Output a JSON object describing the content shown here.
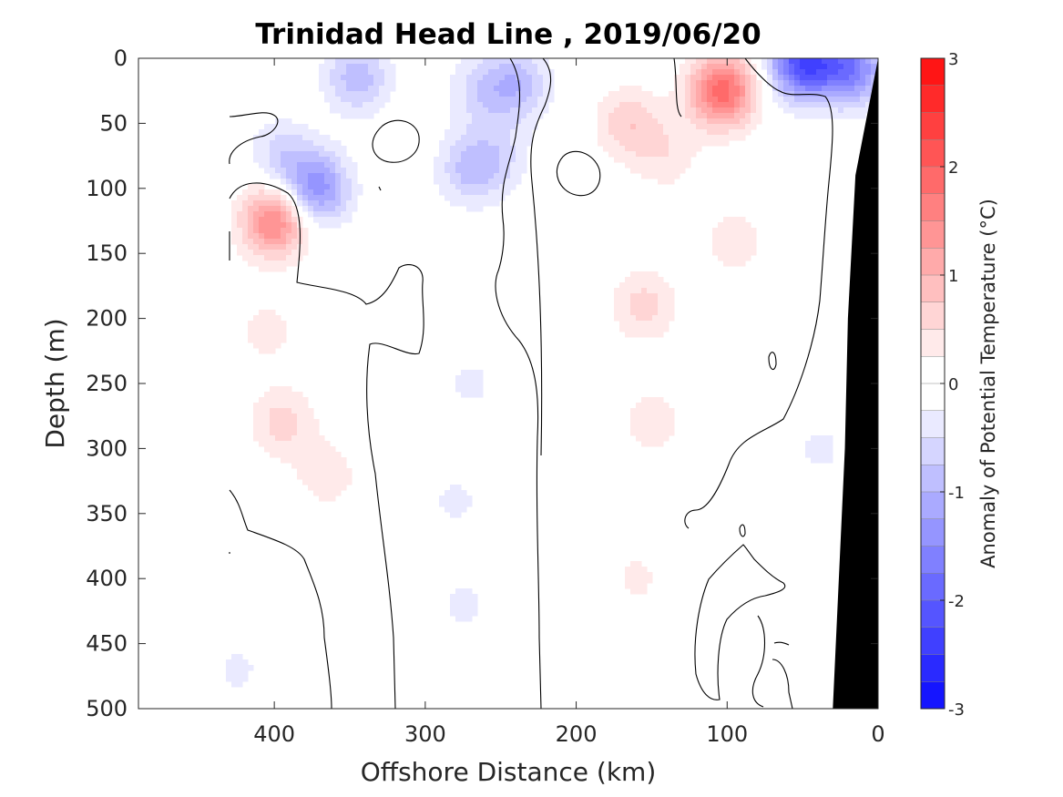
{
  "chart_data": {
    "type": "heatmap",
    "title": "Trinidad Head Line , 2019/06/20",
    "xlabel": "Offshore Distance (km)",
    "ylabel": "Depth (m)",
    "xlim": [
      490,
      0
    ],
    "ylim": [
      500,
      0
    ],
    "x_ticks": [
      "400",
      "300",
      "200",
      "100",
      "0"
    ],
    "x_tick_values": [
      400,
      300,
      200,
      100,
      0
    ],
    "y_ticks": [
      "0",
      "50",
      "100",
      "150",
      "200",
      "250",
      "300",
      "350",
      "400",
      "450",
      "500"
    ],
    "y_tick_values": [
      0,
      50,
      100,
      150,
      200,
      250,
      300,
      350,
      400,
      450,
      500
    ],
    "colorbar": {
      "label": "Anomaly of Potential Temperature (°C)",
      "range": [
        -3,
        3
      ],
      "step": 0.25,
      "ticks": [
        "3",
        "2",
        "1",
        "0",
        "-1",
        "-2",
        "-3"
      ],
      "tick_values": [
        3,
        2,
        1,
        0,
        -1,
        -2,
        -3
      ],
      "negative_color": "#0000ff",
      "positive_color": "#ff0000",
      "neutral_color": "#ffffff"
    },
    "contour_lines_at": 0,
    "bathymetry_color": "#000000",
    "bathymetry_boundary": [
      [
        0,
        0
      ],
      [
        10,
        60
      ],
      [
        15,
        90
      ],
      [
        20,
        200
      ],
      [
        22,
        300
      ],
      [
        26,
        400
      ],
      [
        30,
        500
      ]
    ],
    "data_coverage_x_max": 432,
    "anomalies": [
      {
        "x": 345,
        "z": 15,
        "value": -0.9
      },
      {
        "x": 265,
        "z": 25,
        "value": -0.5
      },
      {
        "x": 240,
        "z": 20,
        "value": -0.9
      },
      {
        "x": 372,
        "z": 100,
        "value": -1.4
      },
      {
        "x": 395,
        "z": 75,
        "value": -0.6
      },
      {
        "x": 270,
        "z": 85,
        "value": -0.8
      },
      {
        "x": 250,
        "z": 75,
        "value": -0.4
      },
      {
        "x": 50,
        "z": 3,
        "value": -2.2
      },
      {
        "x": 18,
        "z": 8,
        "value": -1.6
      },
      {
        "x": 400,
        "z": 125,
        "value": 1.6
      },
      {
        "x": 103,
        "z": 25,
        "value": 1.9
      },
      {
        "x": 165,
        "z": 50,
        "value": 0.7
      },
      {
        "x": 140,
        "z": 75,
        "value": 0.4
      },
      {
        "x": 155,
        "z": 190,
        "value": 0.6
      },
      {
        "x": 150,
        "z": 280,
        "value": 0.4
      },
      {
        "x": 160,
        "z": 400,
        "value": 0.3
      },
      {
        "x": 95,
        "z": 140,
        "value": 0.4
      },
      {
        "x": 395,
        "z": 280,
        "value": 0.6
      },
      {
        "x": 365,
        "z": 320,
        "value": 0.4
      },
      {
        "x": 405,
        "z": 210,
        "value": 0.35
      },
      {
        "x": 280,
        "z": 340,
        "value": -0.3
      },
      {
        "x": 275,
        "z": 420,
        "value": -0.3
      },
      {
        "x": 270,
        "z": 250,
        "value": -0.3
      },
      {
        "x": 425,
        "z": 470,
        "value": -0.3
      },
      {
        "x": 38,
        "z": 300,
        "value": -0.3
      }
    ]
  }
}
